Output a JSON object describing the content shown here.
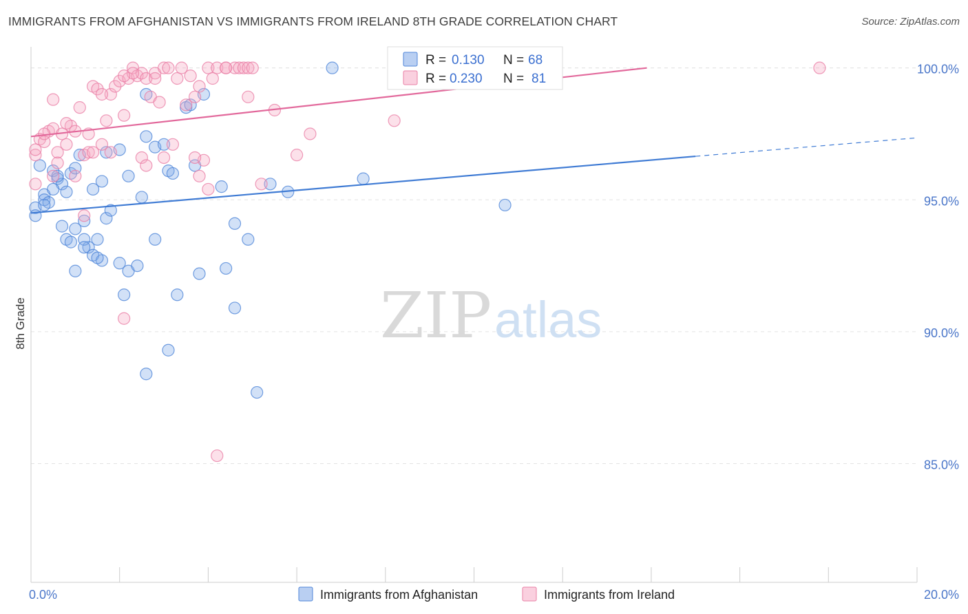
{
  "title": "IMMIGRANTS FROM AFGHANISTAN VS IMMIGRANTS FROM IRELAND 8TH GRADE CORRELATION CHART",
  "source": "Source: ZipAtlas.com",
  "watermark": {
    "zip": "ZIP",
    "atlas": "atlas"
  },
  "legend": {
    "r_label": "R =",
    "n_label": "N =",
    "rows": [
      {
        "r": "0.130",
        "n": "68",
        "color": "#7fa8e8"
      },
      {
        "r": "0.230",
        "n": "81",
        "color": "#f08fb0"
      }
    ]
  },
  "chart_data": {
    "type": "scatter",
    "title": "IMMIGRANTS FROM AFGHANISTAN VS IMMIGRANTS FROM IRELAND 8TH GRADE CORRELATION CHART",
    "xlabel": "",
    "ylabel": "8th Grade",
    "xlim": [
      0,
      20
    ],
    "ylim": [
      80.5,
      100.8
    ],
    "x_tick_labels": [
      "0.0%",
      "20.0%"
    ],
    "y_ticks": [
      {
        "value": 85,
        "label": "85.0%"
      },
      {
        "value": 90,
        "label": "90.0%"
      },
      {
        "value": 95,
        "label": "95.0%"
      },
      {
        "value": 100,
        "label": "100.0%"
      }
    ],
    "series": [
      {
        "name": "Immigrants from Afghanistan",
        "color": "#7fa8e8",
        "stroke": "#4f86d8",
        "trend": {
          "x0": 0,
          "y0": 94.5,
          "x1": 15.0,
          "y1": 96.65,
          "x_end": 20,
          "y_end": 97.35,
          "color": "#3f7bd4"
        },
        "points": [
          [
            0.1,
            94.7
          ],
          [
            0.1,
            94.4
          ],
          [
            0.2,
            96.3
          ],
          [
            0.3,
            95.2
          ],
          [
            0.3,
            95.0
          ],
          [
            0.4,
            94.9
          ],
          [
            0.5,
            96.1
          ],
          [
            0.6,
            95.8
          ],
          [
            0.7,
            95.6
          ],
          [
            0.8,
            95.3
          ],
          [
            0.9,
            96.0
          ],
          [
            1.0,
            96.2
          ],
          [
            1.1,
            96.7
          ],
          [
            1.2,
            94.2
          ],
          [
            1.3,
            93.2
          ],
          [
            1.4,
            95.4
          ],
          [
            1.6,
            95.7
          ],
          [
            1.7,
            94.3
          ],
          [
            1.8,
            94.6
          ],
          [
            2.0,
            96.9
          ],
          [
            2.2,
            95.9
          ],
          [
            2.5,
            95.1
          ],
          [
            2.6,
            97.4
          ],
          [
            2.8,
            97.0
          ],
          [
            3.0,
            97.1
          ],
          [
            3.1,
            96.1
          ],
          [
            3.2,
            96.0
          ],
          [
            3.5,
            98.5
          ],
          [
            3.7,
            96.3
          ],
          [
            3.9,
            99.0
          ],
          [
            4.3,
            95.5
          ],
          [
            4.6,
            94.1
          ],
          [
            4.9,
            93.5
          ],
          [
            5.4,
            95.6
          ],
          [
            5.8,
            95.3
          ],
          [
            6.8,
            100.0
          ],
          [
            7.5,
            95.8
          ],
          [
            10.7,
            94.8
          ],
          [
            1.7,
            96.8
          ],
          [
            2.6,
            99.0
          ],
          [
            0.8,
            93.5
          ],
          [
            0.9,
            93.4
          ],
          [
            1.0,
            93.9
          ],
          [
            1.2,
            93.5
          ],
          [
            1.4,
            92.9
          ],
          [
            1.5,
            93.5
          ],
          [
            1.6,
            92.7
          ],
          [
            2.2,
            92.3
          ],
          [
            2.4,
            92.5
          ],
          [
            2.8,
            93.5
          ],
          [
            3.8,
            92.2
          ],
          [
            4.4,
            92.4
          ],
          [
            2.1,
            91.4
          ],
          [
            3.3,
            91.4
          ],
          [
            4.6,
            90.9
          ],
          [
            3.1,
            89.3
          ],
          [
            2.6,
            88.4
          ],
          [
            5.1,
            87.7
          ],
          [
            10.3,
            100.0
          ],
          [
            0.3,
            94.8
          ],
          [
            0.5,
            95.4
          ],
          [
            0.6,
            95.9
          ],
          [
            1.0,
            92.3
          ],
          [
            2.0,
            92.6
          ],
          [
            3.6,
            98.6
          ],
          [
            1.2,
            93.2
          ],
          [
            1.5,
            92.8
          ],
          [
            0.7,
            94.0
          ]
        ]
      },
      {
        "name": "Immigrants from Ireland",
        "color": "#f5a9c4",
        "stroke": "#ea7fa6",
        "trend": {
          "x0": 0,
          "y0": 97.4,
          "x1": 13.9,
          "y1": 100.0,
          "color": "#e2689b"
        },
        "points": [
          [
            0.1,
            96.7
          ],
          [
            0.1,
            95.6
          ],
          [
            0.2,
            97.3
          ],
          [
            0.3,
            97.2
          ],
          [
            0.4,
            97.6
          ],
          [
            0.5,
            97.7
          ],
          [
            0.6,
            96.8
          ],
          [
            0.7,
            97.5
          ],
          [
            0.8,
            97.1
          ],
          [
            0.9,
            97.8
          ],
          [
            1.0,
            97.6
          ],
          [
            1.1,
            98.5
          ],
          [
            1.2,
            96.7
          ],
          [
            1.3,
            97.5
          ],
          [
            1.4,
            99.3
          ],
          [
            1.5,
            99.2
          ],
          [
            1.6,
            97.1
          ],
          [
            1.7,
            98.0
          ],
          [
            1.8,
            99.0
          ],
          [
            1.9,
            99.3
          ],
          [
            2.0,
            99.5
          ],
          [
            2.1,
            98.2
          ],
          [
            2.2,
            99.6
          ],
          [
            2.3,
            100.0
          ],
          [
            2.4,
            99.7
          ],
          [
            2.5,
            99.8
          ],
          [
            2.6,
            99.6
          ],
          [
            2.7,
            98.9
          ],
          [
            2.8,
            99.8
          ],
          [
            2.9,
            98.7
          ],
          [
            3.0,
            100.0
          ],
          [
            3.1,
            100.0
          ],
          [
            3.2,
            97.1
          ],
          [
            3.3,
            99.6
          ],
          [
            3.4,
            100.0
          ],
          [
            3.5,
            98.6
          ],
          [
            3.6,
            99.7
          ],
          [
            3.7,
            98.9
          ],
          [
            3.8,
            99.3
          ],
          [
            4.0,
            100.0
          ],
          [
            4.1,
            99.6
          ],
          [
            4.2,
            100.0
          ],
          [
            4.4,
            100.0
          ],
          [
            4.6,
            100.0
          ],
          [
            4.7,
            100.0
          ],
          [
            4.8,
            100.0
          ],
          [
            4.9,
            100.0
          ],
          [
            5.0,
            100.0
          ],
          [
            4.4,
            100.0
          ],
          [
            5.5,
            98.4
          ],
          [
            6.0,
            96.7
          ],
          [
            6.3,
            97.5
          ],
          [
            8.2,
            98.0
          ],
          [
            11.5,
            100.0
          ],
          [
            17.8,
            100.0
          ],
          [
            2.3,
            99.8
          ],
          [
            2.8,
            99.6
          ],
          [
            1.0,
            95.9
          ],
          [
            1.3,
            96.8
          ],
          [
            1.4,
            96.8
          ],
          [
            1.8,
            96.8
          ],
          [
            2.5,
            96.6
          ],
          [
            3.0,
            96.6
          ],
          [
            3.8,
            95.9
          ],
          [
            3.9,
            96.5
          ],
          [
            4.9,
            98.9
          ],
          [
            5.2,
            95.6
          ],
          [
            1.2,
            94.4
          ],
          [
            2.1,
            90.5
          ],
          [
            4.2,
            85.3
          ],
          [
            0.5,
            95.9
          ],
          [
            0.6,
            96.4
          ],
          [
            0.3,
            97.5
          ],
          [
            0.5,
            98.8
          ],
          [
            0.8,
            97.9
          ],
          [
            1.6,
            99.0
          ],
          [
            2.1,
            99.7
          ],
          [
            3.7,
            96.6
          ],
          [
            4.0,
            95.4
          ],
          [
            2.6,
            96.3
          ],
          [
            0.1,
            96.9
          ]
        ]
      }
    ]
  },
  "bottom_legend": [
    {
      "label": "Immigrants from Afghanistan",
      "color": "#7fa8e8"
    },
    {
      "label": "Immigrants from Ireland",
      "color": "#f5a9c4"
    }
  ]
}
